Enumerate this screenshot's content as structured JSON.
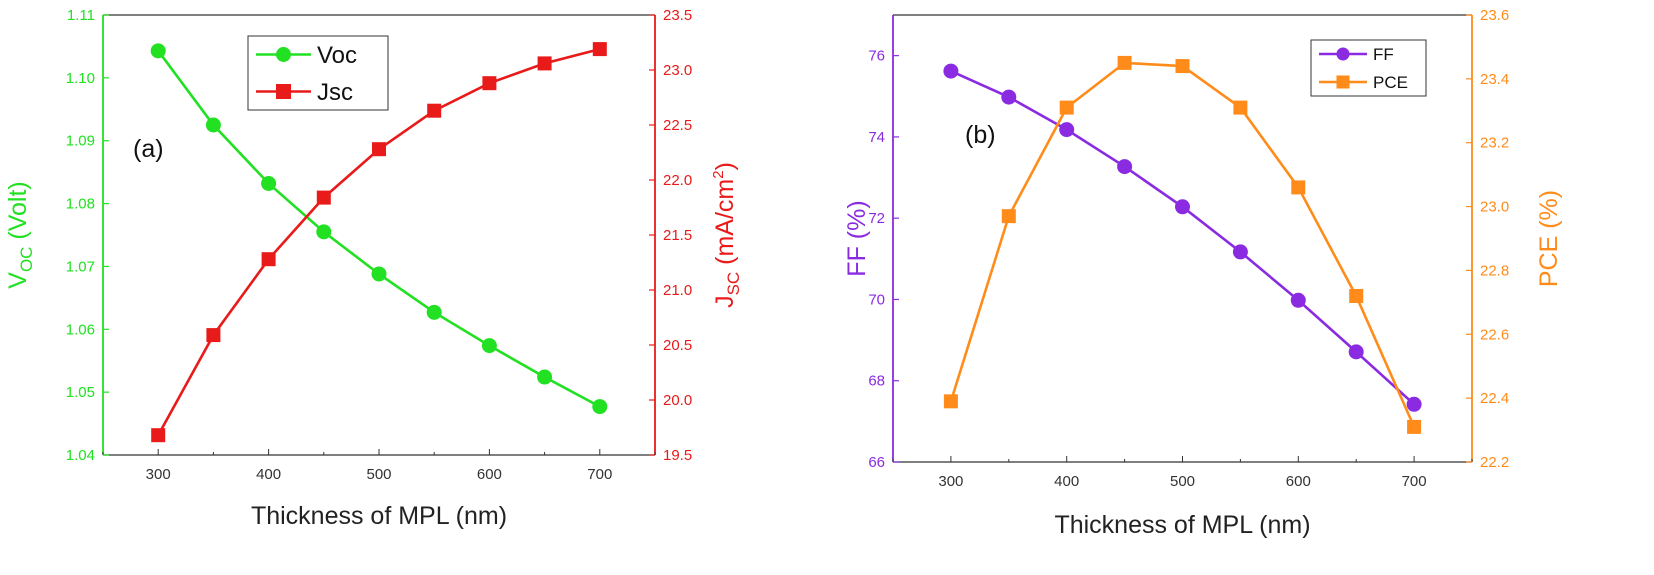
{
  "colors": {
    "green": "#22e022",
    "red": "#e81a1a",
    "purple": "#8a2be2",
    "orange": "#ff8c1a",
    "axis": "#333333"
  },
  "chart_data": [
    {
      "type": "line",
      "panel_label": "(a)",
      "x": [
        300,
        350,
        400,
        450,
        500,
        550,
        600,
        650,
        700
      ],
      "xlabel": "Thickness of MPL (nm)",
      "xlim": [
        250,
        750
      ],
      "xticks": [
        "300",
        "400",
        "500",
        "600",
        "700"
      ],
      "ylabel_left": {
        "main": "V",
        "sub": "OC",
        "rest": " (Volt)"
      },
      "ylabel_right": {
        "main": "J",
        "sub": "SC",
        "rest": " (mA/cm",
        "sup": "2",
        "close": ")"
      },
      "ylim_left": [
        1.04,
        1.11
      ],
      "yticks_left": [
        "1.04",
        "1.05",
        "1.06",
        "1.07",
        "1.08",
        "1.09",
        "1.10",
        "1.11"
      ],
      "ylim_right": [
        19.5,
        23.5
      ],
      "yticks_right": [
        "19.5",
        "20.0",
        "20.5",
        "21.0",
        "21.5",
        "22.0",
        "22.5",
        "23.0",
        "23.5"
      ],
      "legend_position": "top-center",
      "series": [
        {
          "name": "Voc",
          "axis": "left",
          "marker": "circle",
          "color": "#22e022",
          "values": [
            1.1043,
            1.0925,
            1.0832,
            1.0755,
            1.0688,
            1.0627,
            1.0574,
            1.0524,
            1.0477
          ]
        },
        {
          "name": "Jsc",
          "axis": "right",
          "marker": "square",
          "color": "#e81a1a",
          "values": [
            19.68,
            20.59,
            21.28,
            21.84,
            22.28,
            22.63,
            22.88,
            23.06,
            23.19
          ]
        }
      ]
    },
    {
      "type": "line",
      "panel_label": "(b)",
      "x": [
        300,
        350,
        400,
        450,
        500,
        550,
        600,
        650,
        700
      ],
      "xlabel": "Thickness of MPL (nm)",
      "xlim": [
        250,
        750
      ],
      "xticks": [
        "300",
        "400",
        "500",
        "600",
        "700"
      ],
      "ylabel_left": {
        "main": "FF (%)"
      },
      "ylabel_right": {
        "main": "PCE (%)"
      },
      "ylim_left": [
        66,
        77
      ],
      "yticks_left": [
        "66",
        "68",
        "70",
        "72",
        "74",
        "76"
      ],
      "ylim_right": [
        22.2,
        23.6
      ],
      "yticks_right": [
        "22.2",
        "22.4",
        "22.6",
        "22.8",
        "23.0",
        "23.2",
        "23.4",
        "23.6"
      ],
      "legend_position": "top-right",
      "series": [
        {
          "name": "FF",
          "axis": "left",
          "marker": "circle",
          "color": "#8a2be2",
          "values": [
            75.62,
            74.98,
            74.18,
            73.27,
            72.28,
            71.17,
            69.98,
            68.71,
            67.42
          ]
        },
        {
          "name": "PCE",
          "axis": "right",
          "marker": "square",
          "color": "#ff8c1a",
          "values": [
            22.39,
            22.97,
            23.31,
            23.45,
            23.44,
            23.31,
            23.06,
            22.72,
            22.31
          ]
        }
      ]
    }
  ]
}
